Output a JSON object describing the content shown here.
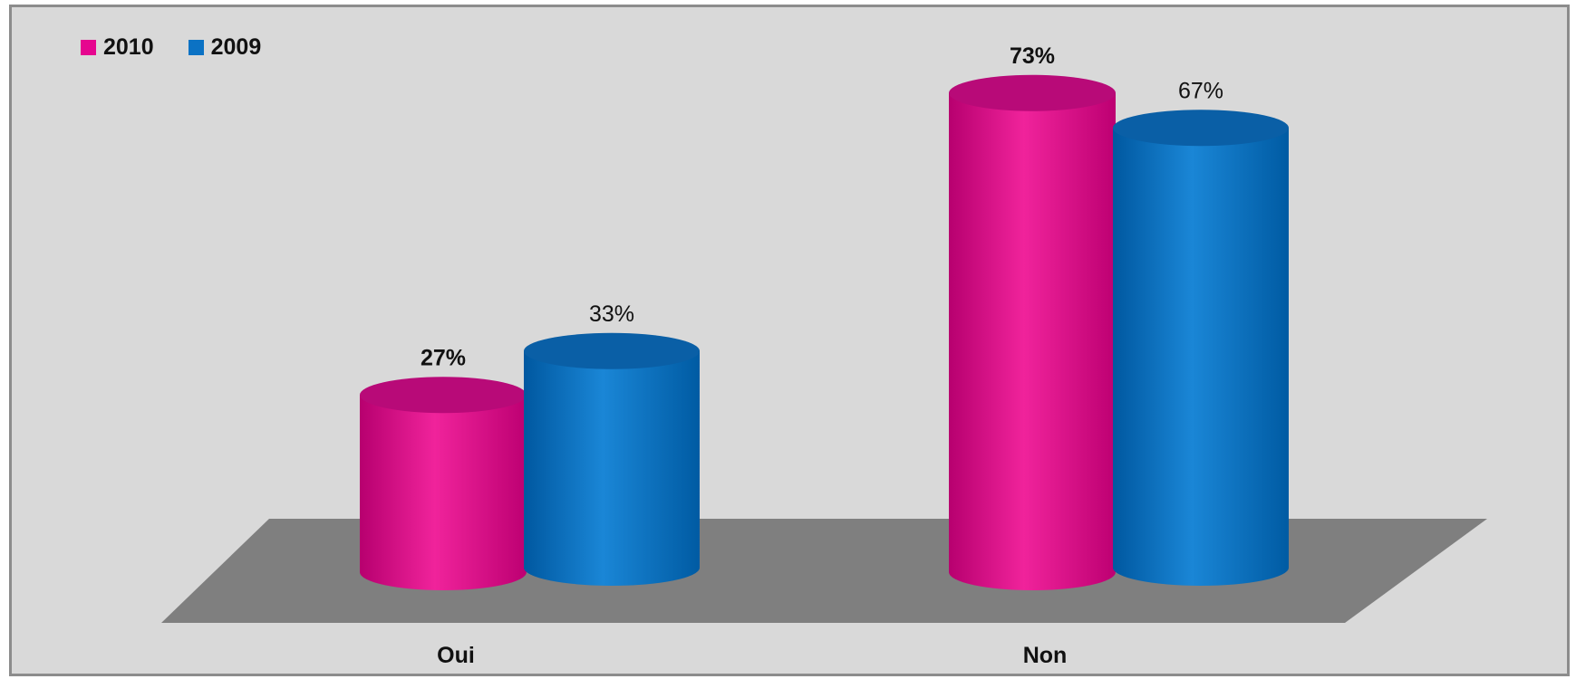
{
  "chart_data": {
    "type": "bar",
    "style": "3d-cylinder",
    "categories": [
      "Oui",
      "Non"
    ],
    "series": [
      {
        "name": "2010",
        "values": [
          27,
          73
        ],
        "labels": [
          "27%",
          "73%"
        ],
        "color": "#e6068f",
        "label_bold": true
      },
      {
        "name": "2009",
        "values": [
          33,
          67
        ],
        "labels": [
          "33%",
          "67%"
        ],
        "color": "#0b72c4",
        "label_bold": false
      }
    ],
    "unit": "%",
    "ylim": [
      0,
      80
    ],
    "legend_position": "top-left",
    "grid": false,
    "background": "#d9d9d9",
    "floor_color": "#7f7f7f"
  }
}
